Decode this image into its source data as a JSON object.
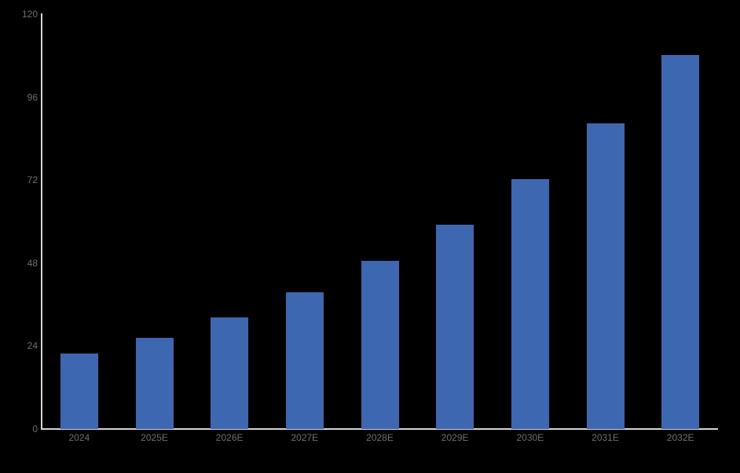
{
  "chart_data": {
    "type": "bar",
    "title": "",
    "xlabel": "",
    "ylabel": "",
    "categories": [
      "2024",
      "2025E",
      "2026E",
      "2027E",
      "2028E",
      "2029E",
      "2030E",
      "2031E",
      "2032E"
    ],
    "values": [
      21.8,
      26.4,
      32.2,
      39.5,
      48.6,
      59.2,
      72.3,
      88.4,
      108.2
    ],
    "series_name": "",
    "ylim": [
      0,
      120
    ],
    "yticks": [
      0,
      24,
      48,
      72,
      96,
      120
    ],
    "grid": false,
    "legend": "none",
    "bar_color": "#3D67B1",
    "axis_color": "#D4D4D4",
    "tick_label_color": "#6F6F6F",
    "background_color": "#000000"
  }
}
